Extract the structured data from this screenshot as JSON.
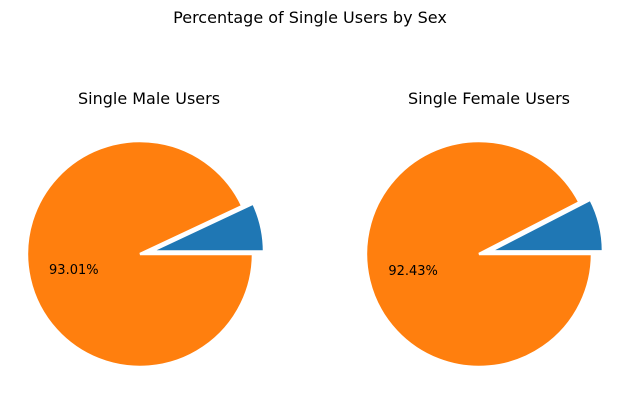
{
  "chart_data": {
    "suptitle": "Percentage of Single Users by Sex",
    "charts": [
      {
        "type": "pie",
        "title": "Single Male Users",
        "values": [
          6.99,
          93.01
        ],
        "labels": [
          "",
          "93.01%"
        ],
        "colors": [
          "#1f77b4",
          "#ff7f0e"
        ],
        "explode": [
          0.1,
          0
        ],
        "start_angle_deg": 0,
        "direction": "counterclockwise"
      },
      {
        "type": "pie",
        "title": "Single Female Users",
        "values": [
          7.57,
          92.43
        ],
        "labels": [
          "",
          "92.43%"
        ],
        "colors": [
          "#1f77b4",
          "#ff7f0e"
        ],
        "explode": [
          0.1,
          0
        ],
        "start_angle_deg": 0,
        "direction": "counterclockwise"
      }
    ]
  }
}
